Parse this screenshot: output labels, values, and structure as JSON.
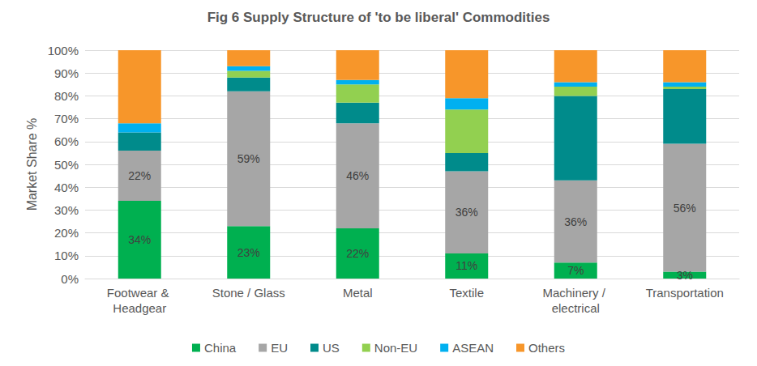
{
  "chart_data": {
    "type": "bar",
    "stacked": true,
    "title": "Fig 6 Supply Structure of 'to be liberal' Commodities",
    "y_label": "Market Share %",
    "categories": [
      "Footwear & Headgear",
      "Stone / Glass",
      "Metal",
      "Textile",
      "Machinery / electrical",
      "Transportation"
    ],
    "series": [
      {
        "name": "China",
        "color": "#00b050",
        "values": [
          34,
          23,
          22,
          11,
          7,
          3
        ],
        "value_labels": [
          "34%",
          "23%",
          "22%",
          "11%",
          "7%",
          "3%"
        ]
      },
      {
        "name": "EU",
        "color": "#a6a6a6",
        "values": [
          22,
          59,
          46,
          36,
          36,
          56
        ],
        "value_labels": [
          "22%",
          "59%",
          "46%",
          "36%",
          "36%",
          "56%"
        ]
      },
      {
        "name": "US",
        "color": "#008b8b",
        "values": [
          8,
          6,
          9,
          8,
          37,
          24
        ]
      },
      {
        "name": "Non-EU",
        "color": "#92d050",
        "values": [
          0,
          3,
          8,
          19,
          4,
          1
        ]
      },
      {
        "name": "ASEAN",
        "color": "#00b0f0",
        "values": [
          4,
          2,
          2,
          5,
          2,
          2
        ]
      },
      {
        "name": "Others",
        "color": "#f7962a",
        "values": [
          32,
          7,
          13,
          21,
          14,
          14
        ]
      }
    ],
    "ylim": [
      0,
      100
    ],
    "yticks": [
      {
        "value": 0,
        "label": "0%"
      },
      {
        "value": 10,
        "label": "10%"
      },
      {
        "value": 20,
        "label": "20%"
      },
      {
        "value": 30,
        "label": "30%"
      },
      {
        "value": 40,
        "label": "40%"
      },
      {
        "value": 50,
        "label": "50%"
      },
      {
        "value": 60,
        "label": "60%"
      },
      {
        "value": 70,
        "label": "70%"
      },
      {
        "value": 80,
        "label": "80%"
      },
      {
        "value": 90,
        "label": "90%"
      },
      {
        "value": 100,
        "label": "100%"
      }
    ],
    "grid": true,
    "legend": "bottom"
  }
}
